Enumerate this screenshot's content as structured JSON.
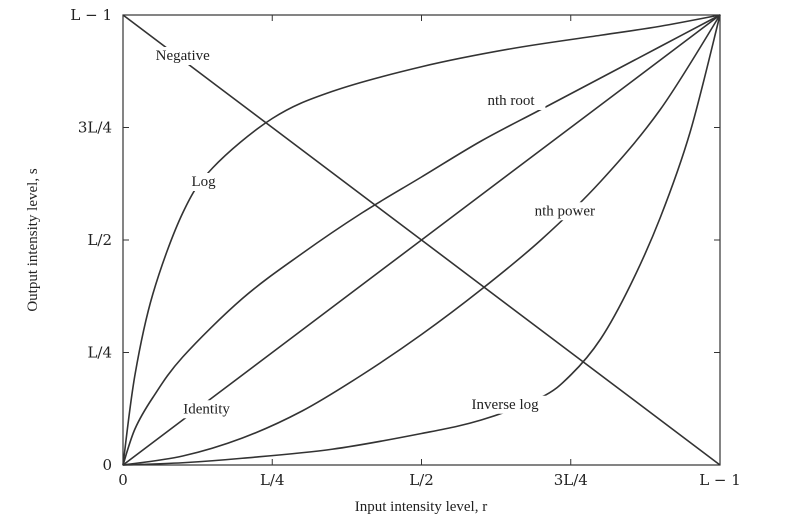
{
  "chart_data": {
    "type": "line",
    "title": "",
    "xlabel": "Input intensity level, r",
    "ylabel": "Output intensity level, s",
    "xlim": [
      0,
      1
    ],
    "ylim": [
      0,
      1
    ],
    "grid": false,
    "legend": "none",
    "x_ticks": [
      {
        "value": 0,
        "label": "0"
      },
      {
        "value": 0.25,
        "label": "L/4"
      },
      {
        "value": 0.5,
        "label": "L/2"
      },
      {
        "value": 0.75,
        "label": "3L/4"
      },
      {
        "value": 1,
        "label": "L − 1"
      }
    ],
    "y_ticks": [
      {
        "value": 0,
        "label": "0"
      },
      {
        "value": 0.25,
        "label": "L/4"
      },
      {
        "value": 0.5,
        "label": "L/2"
      },
      {
        "value": 0.75,
        "label": "3L/4"
      },
      {
        "value": 1,
        "label": "L − 1"
      }
    ],
    "series": [
      {
        "name": "Negative",
        "x": [
          0,
          0.25,
          0.5,
          0.75,
          1
        ],
        "y": [
          1,
          0.75,
          0.5,
          0.25,
          0
        ]
      },
      {
        "name": "Identity",
        "x": [
          0,
          0.25,
          0.5,
          0.75,
          1
        ],
        "y": [
          0,
          0.25,
          0.5,
          0.75,
          1
        ]
      },
      {
        "name": "Log",
        "x": [
          0,
          0.02,
          0.05,
          0.1,
          0.15,
          0.25,
          0.35,
          0.5,
          0.65,
          0.8,
          0.9,
          1
        ],
        "y": [
          0,
          0.2,
          0.38,
          0.56,
          0.66,
          0.77,
          0.83,
          0.885,
          0.925,
          0.955,
          0.975,
          1
        ]
      },
      {
        "name": "nth root",
        "x": [
          0,
          0.02,
          0.05,
          0.1,
          0.2,
          0.3,
          0.4,
          0.5,
          0.6,
          0.7,
          0.8,
          0.9,
          1
        ],
        "y": [
          0,
          0.08,
          0.15,
          0.24,
          0.37,
          0.47,
          0.56,
          0.64,
          0.72,
          0.79,
          0.86,
          0.93,
          1
        ]
      },
      {
        "name": "nth power",
        "x": [
          0,
          0.1,
          0.2,
          0.3,
          0.4,
          0.5,
          0.6,
          0.7,
          0.8,
          0.9,
          1
        ],
        "y": [
          0,
          0.02,
          0.06,
          0.12,
          0.2,
          0.29,
          0.39,
          0.5,
          0.63,
          0.79,
          1
        ]
      },
      {
        "name": "Inverse log",
        "x": [
          0,
          0.1,
          0.2,
          0.35,
          0.5,
          0.6,
          0.7,
          0.75,
          0.8,
          0.85,
          0.9,
          0.95,
          1
        ],
        "y": [
          0,
          0.005,
          0.015,
          0.035,
          0.07,
          0.1,
          0.15,
          0.2,
          0.28,
          0.4,
          0.55,
          0.74,
          1
        ]
      }
    ],
    "annotations": [
      {
        "text": "Negative",
        "x": 0.1,
        "y": 0.9
      },
      {
        "text": "nth root",
        "x": 0.65,
        "y": 0.8
      },
      {
        "text": "Log",
        "x": 0.135,
        "y": 0.62
      },
      {
        "text": "nth power",
        "x": 0.74,
        "y": 0.555
      },
      {
        "text": "Identity",
        "x": 0.14,
        "y": 0.115
      },
      {
        "text": "Inverse log",
        "x": 0.64,
        "y": 0.125
      }
    ]
  }
}
